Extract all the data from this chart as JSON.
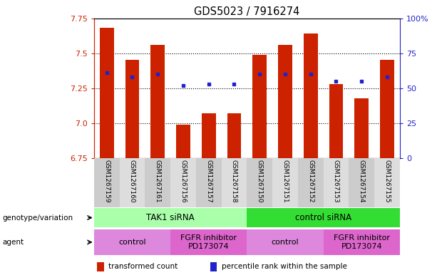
{
  "title": "GDS5023 / 7916274",
  "samples": [
    "GSM1267159",
    "GSM1267160",
    "GSM1267161",
    "GSM1267156",
    "GSM1267157",
    "GSM1267158",
    "GSM1267150",
    "GSM1267151",
    "GSM1267152",
    "GSM1267153",
    "GSM1267154",
    "GSM1267155"
  ],
  "bar_values": [
    7.68,
    7.45,
    7.56,
    6.99,
    7.07,
    7.07,
    7.49,
    7.56,
    7.64,
    7.28,
    7.18,
    7.45
  ],
  "percentile_values": [
    7.36,
    7.33,
    7.35,
    7.27,
    7.28,
    7.28,
    7.35,
    7.35,
    7.35,
    7.3,
    7.3,
    7.33
  ],
  "bar_bottom": 6.75,
  "ylim": [
    6.75,
    7.75
  ],
  "yticks_left": [
    6.75,
    7.0,
    7.25,
    7.5,
    7.75
  ],
  "yticks_right": [
    0,
    25,
    50,
    75,
    100
  ],
  "bar_color": "#cc2200",
  "percentile_color": "#2222cc",
  "background_color": "#ffffff",
  "genotype_groups": [
    {
      "label": "TAK1 siRNA",
      "start": 0,
      "end": 6,
      "color": "#aaffaa"
    },
    {
      "label": "control siRNA",
      "start": 6,
      "end": 12,
      "color": "#33dd33"
    }
  ],
  "agent_groups": [
    {
      "label": "control",
      "start": 0,
      "end": 3,
      "color": "#dd88dd"
    },
    {
      "label": "FGFR inhibitor\nPD173074",
      "start": 3,
      "end": 6,
      "color": "#dd66cc"
    },
    {
      "label": "control",
      "start": 6,
      "end": 9,
      "color": "#dd88dd"
    },
    {
      "label": "FGFR inhibitor\nPD173074",
      "start": 9,
      "end": 12,
      "color": "#dd66cc"
    }
  ],
  "legend_items": [
    {
      "color": "#cc2200",
      "label": "transformed count"
    },
    {
      "color": "#2222cc",
      "label": "percentile rank within the sample"
    }
  ],
  "title_color": "#000000",
  "left_axis_color": "#cc2200",
  "right_axis_color": "#2222cc",
  "bar_width": 0.55,
  "sample_bg_colors": [
    "#cccccc",
    "#dddddd"
  ]
}
